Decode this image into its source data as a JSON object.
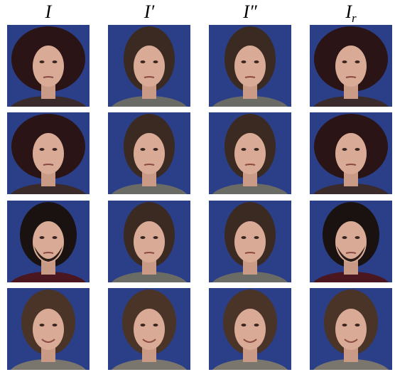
{
  "figure": {
    "headers": [
      {
        "text": "I"
      },
      {
        "text": "I′"
      },
      {
        "text": "I″"
      },
      {
        "text": "I",
        "sub": "r"
      }
    ]
  }
}
